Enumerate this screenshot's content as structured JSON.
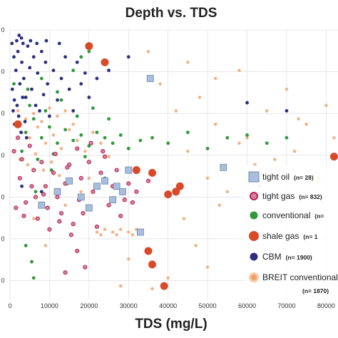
{
  "chart_data": {
    "type": "scatter",
    "title": "Depth vs. TDS",
    "xlabel": "TDS (mg/L)",
    "ylabel": "",
    "x_ticks": [
      0,
      10000,
      20000,
      30000,
      40000,
      50000,
      60000,
      70000,
      80000
    ],
    "x_tick_labels": [
      "0",
      "10000",
      "20000",
      "30000",
      "40000",
      "50000",
      "60000",
      "70000",
      "80000"
    ],
    "xlim": [
      0,
      83000
    ],
    "y_tick_labels": [
      "0",
      "0",
      "0",
      "0",
      "0",
      "0",
      "0"
    ],
    "grid": true,
    "legend_position": "right",
    "series": [
      {
        "name": "tight oil",
        "count_label": "(n= 28)",
        "color": "#a9bedd",
        "marker": "square",
        "points": [
          [
            35500,
            0.18
          ],
          [
            54000,
            0.51
          ],
          [
            33000,
            0.75
          ],
          [
            22000,
            0.58
          ],
          [
            24000,
            0.56
          ],
          [
            27000,
            0.58
          ],
          [
            28500,
            0.6
          ],
          [
            15000,
            0.56
          ],
          [
            30000,
            0.52
          ],
          [
            18000,
            0.62
          ],
          [
            26000,
            0.63
          ],
          [
            20000,
            0.66
          ],
          [
            12000,
            0.6
          ],
          [
            8000,
            0.65
          ]
        ]
      },
      {
        "name": "tight gas",
        "count_label": "(n= 832)",
        "color": "#b5234d",
        "marker": "circle",
        "points": [
          [
            1000,
            0.45
          ],
          [
            3000,
            0.48
          ],
          [
            6000,
            0.52
          ],
          [
            9000,
            0.58
          ],
          [
            12000,
            0.62
          ],
          [
            15000,
            0.5
          ],
          [
            18000,
            0.55
          ],
          [
            21000,
            0.6
          ],
          [
            24000,
            0.47
          ],
          [
            27000,
            0.52
          ],
          [
            30000,
            0.57
          ],
          [
            4000,
            0.64
          ],
          [
            7000,
            0.7
          ],
          [
            10000,
            0.74
          ],
          [
            13000,
            0.68
          ],
          [
            16000,
            0.72
          ],
          [
            2000,
            0.4
          ],
          [
            5000,
            0.43
          ],
          [
            8000,
            0.49
          ],
          [
            11000,
            0.53
          ],
          [
            14000,
            0.57
          ],
          [
            17000,
            0.44
          ],
          [
            20000,
            0.49
          ],
          [
            23000,
            0.53
          ],
          [
            26000,
            0.58
          ],
          [
            29000,
            0.63
          ],
          [
            32000,
            0.6
          ],
          [
            35000,
            0.56
          ],
          [
            1500,
            0.66
          ],
          [
            3500,
            0.69
          ],
          [
            6500,
            0.62
          ],
          [
            9500,
            0.66
          ],
          [
            12500,
            0.71
          ],
          [
            15500,
            0.76
          ],
          [
            18500,
            0.68
          ],
          [
            22000,
            0.73
          ],
          [
            25000,
            0.65
          ],
          [
            28000,
            0.69
          ],
          [
            31000,
            0.64
          ],
          [
            2500,
            0.55
          ],
          [
            5500,
            0.58
          ],
          [
            8500,
            0.61
          ],
          [
            11500,
            0.46
          ],
          [
            14500,
            0.51
          ],
          [
            17500,
            0.63
          ],
          [
            20500,
            0.42
          ],
          [
            23500,
            0.45
          ],
          [
            19000,
            0.88
          ],
          [
            17000,
            0.82
          ],
          [
            14000,
            0.9
          ]
        ]
      },
      {
        "name": "conventional",
        "count_label": "(n=",
        "color": "#2f9a3a",
        "marker": "circle",
        "points": [
          [
            2000,
            0.35
          ],
          [
            4000,
            0.38
          ],
          [
            6000,
            0.33
          ],
          [
            8000,
            0.4
          ],
          [
            10000,
            0.36
          ],
          [
            12000,
            0.42
          ],
          [
            14000,
            0.37
          ],
          [
            16000,
            0.41
          ],
          [
            18000,
            0.39
          ],
          [
            20000,
            0.43
          ],
          [
            22000,
            0.38
          ],
          [
            24000,
            0.4
          ],
          [
            26000,
            0.42
          ],
          [
            28000,
            0.39
          ],
          [
            30000,
            0.44
          ],
          [
            33000,
            0.41
          ],
          [
            36000,
            0.4
          ],
          [
            40000,
            0.42
          ],
          [
            45000,
            0.38
          ],
          [
            50000,
            0.44
          ],
          [
            55000,
            0.4
          ],
          [
            60000,
            0.39
          ],
          [
            65000,
            0.42
          ],
          [
            70000,
            0.4
          ],
          [
            5000,
            0.28
          ],
          [
            9000,
            0.3
          ],
          [
            13000,
            0.26
          ],
          [
            17000,
            0.32
          ],
          [
            21000,
            0.29
          ],
          [
            25000,
            0.33
          ],
          [
            3000,
            0.45
          ],
          [
            7000,
            0.48
          ],
          [
            11000,
            0.46
          ],
          [
            15000,
            0.5
          ],
          [
            19000,
            0.47
          ],
          [
            2500,
            0.55
          ],
          [
            6500,
            0.6
          ],
          [
            10500,
            0.52
          ],
          [
            14500,
            0.57
          ],
          [
            24000,
            0.55
          ],
          [
            1000,
            0.2
          ],
          [
            4500,
            0.22
          ],
          [
            8000,
            0.18
          ],
          [
            12000,
            0.23
          ],
          [
            16000,
            0.15
          ],
          [
            18000,
            0.1
          ],
          [
            20000,
            0.08
          ],
          [
            6000,
            0.92
          ],
          [
            5500,
            0.86
          ],
          [
            4000,
            0.8
          ]
        ]
      },
      {
        "name": "shale gas",
        "count_label": "(n= 1",
        "color": "#d94a2a",
        "marker": "circle-large",
        "points": [
          [
            20000,
            0.06
          ],
          [
            24000,
            0.12
          ],
          [
            2000,
            0.35
          ],
          [
            36000,
            0.53
          ],
          [
            40000,
            0.61
          ],
          [
            42000,
            0.6
          ],
          [
            43000,
            0.58
          ],
          [
            35000,
            0.82
          ],
          [
            36000,
            0.87
          ],
          [
            39000,
            0.95
          ],
          [
            32000,
            0.52
          ],
          [
            82000,
            0.47
          ]
        ]
      },
      {
        "name": "CBM",
        "count_label": "(n= 1900)",
        "color": "#2d2f7e",
        "marker": "circle",
        "points": [
          [
            500,
            0.05
          ],
          [
            1000,
            0.1
          ],
          [
            1500,
            0.15
          ],
          [
            2000,
            0.08
          ],
          [
            2500,
            0.2
          ],
          [
            3000,
            0.12
          ],
          [
            3500,
            0.18
          ],
          [
            4000,
            0.25
          ],
          [
            4500,
            0.06
          ],
          [
            5000,
            0.14
          ],
          [
            5500,
            0.22
          ],
          [
            6000,
            0.1
          ],
          [
            6500,
            0.28
          ],
          [
            7000,
            0.16
          ],
          [
            7500,
            0.3
          ],
          [
            8000,
            0.08
          ],
          [
            8500,
            0.24
          ],
          [
            9000,
            0.12
          ],
          [
            9500,
            0.2
          ],
          [
            10000,
            0.32
          ],
          [
            11000,
            0.15
          ],
          [
            12000,
            0.26
          ],
          [
            13000,
            0.18
          ],
          [
            14000,
            0.1
          ],
          [
            15000,
            0.22
          ],
          [
            16000,
            0.3
          ],
          [
            17000,
            0.12
          ],
          [
            18000,
            0.2
          ],
          [
            19000,
            0.16
          ],
          [
            20000,
            0.25
          ],
          [
            800,
            0.3
          ],
          [
            1200,
            0.35
          ],
          [
            1800,
            0.28
          ],
          [
            2200,
            0.32
          ],
          [
            2800,
            0.38
          ],
          [
            3200,
            0.25
          ],
          [
            3800,
            0.34
          ],
          [
            4200,
            0.4
          ],
          [
            600,
            0.22
          ],
          [
            1100,
            0.26
          ],
          [
            1700,
            0.04
          ],
          [
            2300,
            0.02
          ],
          [
            2900,
            0.03
          ],
          [
            3300,
            0.05
          ],
          [
            5200,
            0.04
          ],
          [
            6800,
            0.05
          ],
          [
            9200,
            0.04
          ],
          [
            12500,
            0.05
          ],
          [
            22000,
            0.18
          ],
          [
            25000,
            0.15
          ],
          [
            30000,
            0.1
          ],
          [
            60000,
            0.27
          ],
          [
            70000,
            0.3
          ],
          [
            8000,
            0.6
          ],
          [
            3000,
            0.58
          ]
        ]
      },
      {
        "name": "BREIT conventional",
        "count_label": "(n= 1870)",
        "color": "#f0a16a",
        "marker": "circle",
        "points": [
          [
            1000,
            0.35
          ],
          [
            3000,
            0.38
          ],
          [
            5000,
            0.4
          ],
          [
            7000,
            0.36
          ],
          [
            9000,
            0.42
          ],
          [
            11000,
            0.39
          ],
          [
            13000,
            0.44
          ],
          [
            15000,
            0.37
          ],
          [
            17000,
            0.41
          ],
          [
            19000,
            0.45
          ],
          [
            21000,
            0.38
          ],
          [
            23000,
            0.42
          ],
          [
            25000,
            0.47
          ],
          [
            2000,
            0.3
          ],
          [
            4000,
            0.33
          ],
          [
            6000,
            0.31
          ],
          [
            8000,
            0.34
          ],
          [
            10000,
            0.29
          ],
          [
            12000,
            0.32
          ],
          [
            14000,
            0.3
          ],
          [
            16000,
            0.35
          ],
          [
            2500,
            0.48
          ],
          [
            4500,
            0.5
          ],
          [
            6500,
            0.46
          ],
          [
            8500,
            0.52
          ],
          [
            10500,
            0.49
          ],
          [
            12500,
            0.54
          ],
          [
            22000,
            0.75
          ],
          [
            24000,
            0.74
          ],
          [
            26000,
            0.75
          ],
          [
            28000,
            0.74
          ],
          [
            30000,
            0.75
          ],
          [
            32000,
            0.74
          ],
          [
            23000,
            0.76
          ],
          [
            27000,
            0.76
          ],
          [
            31000,
            0.76
          ],
          [
            35000,
            0.08
          ],
          [
            38000,
            0.2
          ],
          [
            42000,
            0.3
          ],
          [
            45000,
            0.45
          ],
          [
            48000,
            0.25
          ],
          [
            50000,
            0.55
          ],
          [
            52000,
            0.35
          ],
          [
            55000,
            0.6
          ],
          [
            58000,
            0.15
          ],
          [
            60000,
            0.4
          ],
          [
            62000,
            0.5
          ],
          [
            65000,
            0.3
          ],
          [
            68000,
            0.62
          ],
          [
            70000,
            0.22
          ],
          [
            72000,
            0.45
          ],
          [
            75000,
            0.35
          ],
          [
            78000,
            0.55
          ],
          [
            80000,
            0.28
          ],
          [
            82000,
            0.4
          ],
          [
            44000,
            0.7
          ],
          [
            47000,
            0.8
          ],
          [
            50000,
            0.88
          ],
          [
            53000,
            0.65
          ],
          [
            40000,
            0.92
          ],
          [
            36000,
            0.96
          ],
          [
            30000,
            0.85
          ],
          [
            28000,
            0.95
          ],
          [
            45000,
            0.12
          ],
          [
            52000,
            0.18
          ],
          [
            58000,
            0.42
          ],
          [
            63000,
            0.58
          ],
          [
            67000,
            0.48
          ],
          [
            73000,
            0.33
          ],
          [
            18000,
            0.6
          ],
          [
            20000,
            0.55
          ],
          [
            14000,
            0.65
          ],
          [
            6000,
            0.7
          ],
          [
            9000,
            0.8
          ]
        ]
      }
    ]
  }
}
